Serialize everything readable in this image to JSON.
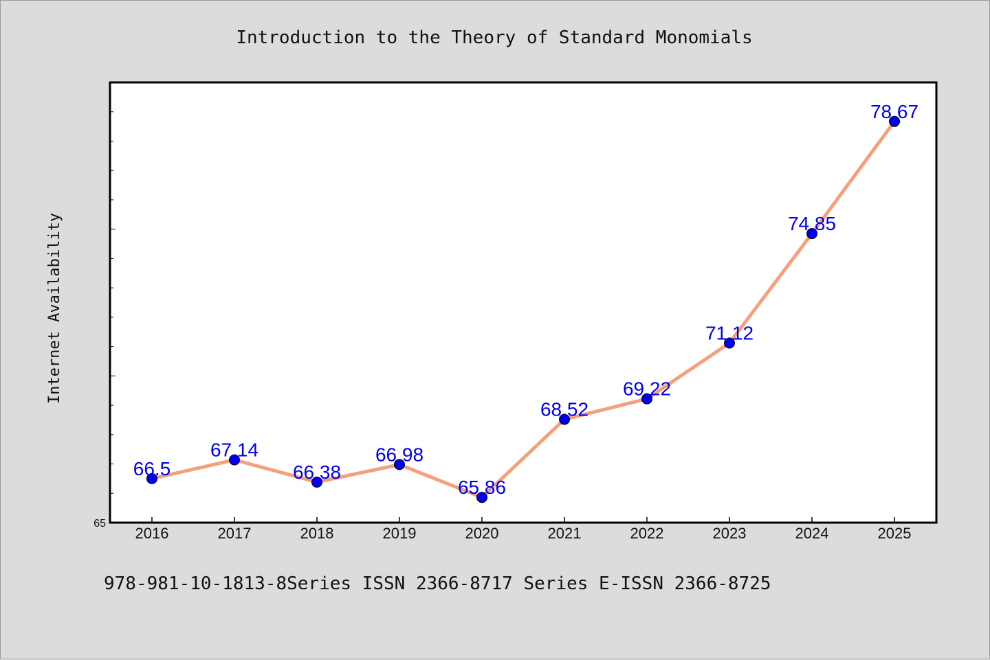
{
  "footer": "978-981-10-1813-8Series ISSN 2366-8717 Series E-ISSN 2366-8725",
  "chart_data": {
    "type": "line",
    "title": "Introduction to the Theory of Standard Monomials",
    "xlabel": "",
    "ylabel": "Internet Availability",
    "categories": [
      "2016",
      "2017",
      "2018",
      "2019",
      "2020",
      "2021",
      "2022",
      "2023",
      "2024",
      "2025"
    ],
    "series": [
      {
        "values": [
          66.5,
          67.14,
          66.38,
          66.98,
          65.86,
          68.52,
          69.22,
          71.12,
          74.85,
          78.67
        ],
        "labels": [
          "66.5",
          "67.14",
          "66.38",
          "66.98",
          "65.86",
          "68.52",
          "69.22",
          "71.12",
          "74.85",
          "78.67"
        ]
      }
    ],
    "ylim": [
      65,
      80
    ],
    "y_tick_labels": [
      "65"
    ],
    "grid": false,
    "legend": "none",
    "colors": {
      "line": "#f4a07a",
      "marker": "#0000ee",
      "label": "#0000ee",
      "plot_background": "#ffffff",
      "page_background": "#dcdcdc"
    }
  }
}
